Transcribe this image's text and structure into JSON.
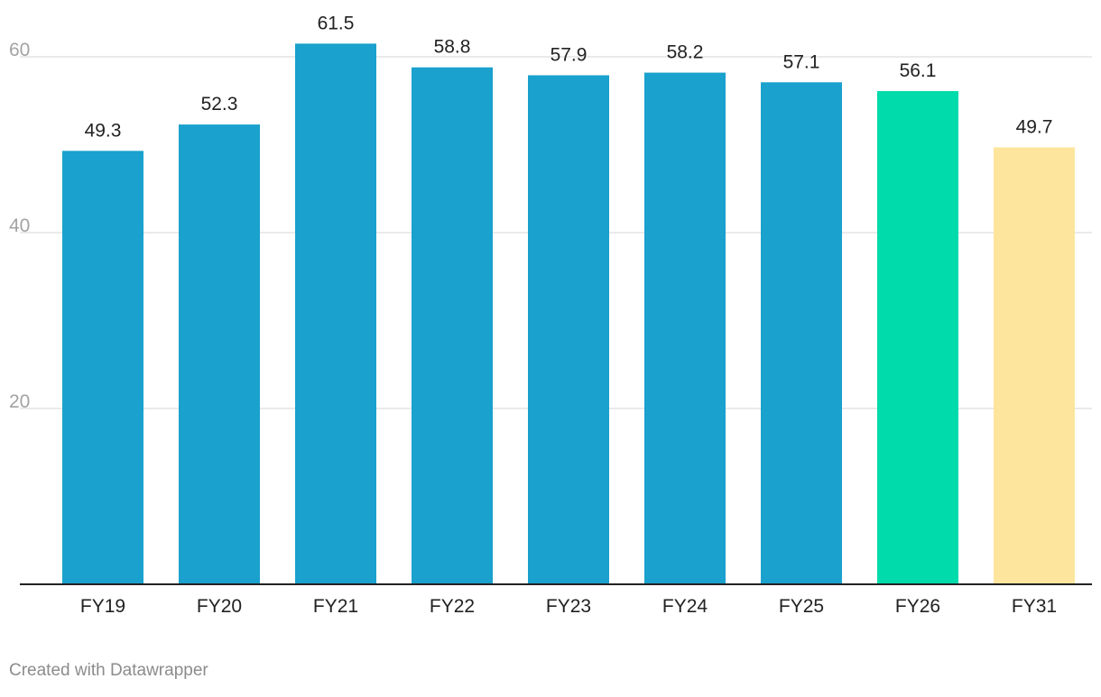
{
  "chart_data": {
    "type": "bar",
    "title": "",
    "xlabel": "",
    "ylabel": "",
    "ylim": [
      0,
      60
    ],
    "yticks": [
      20,
      40,
      60
    ],
    "grid": true,
    "categories": [
      "FY19",
      "FY20",
      "FY21",
      "FY22",
      "FY23",
      "FY24",
      "FY25",
      "FY26",
      "FY31"
    ],
    "values": [
      49.3,
      52.3,
      61.5,
      58.8,
      57.9,
      58.2,
      57.1,
      56.1,
      49.7
    ],
    "value_labels": [
      "49.3",
      "52.3",
      "61.5",
      "58.8",
      "57.9",
      "58.2",
      "57.1",
      "56.1",
      "49.7"
    ],
    "bar_colors": [
      "#1aa1cd",
      "#1aa1cd",
      "#1aa1cd",
      "#1aa1cd",
      "#1aa1cd",
      "#1aa1cd",
      "#1aa1cd",
      "#00dbab",
      "#fde59d"
    ]
  },
  "colors": {
    "gridline": "#e4e4e4",
    "baseline": "#222222",
    "tick_label": "#a3a3a3",
    "category_label": "#222222",
    "value_label": "#222222"
  },
  "footer": {
    "credit": "Created with Datawrapper"
  }
}
